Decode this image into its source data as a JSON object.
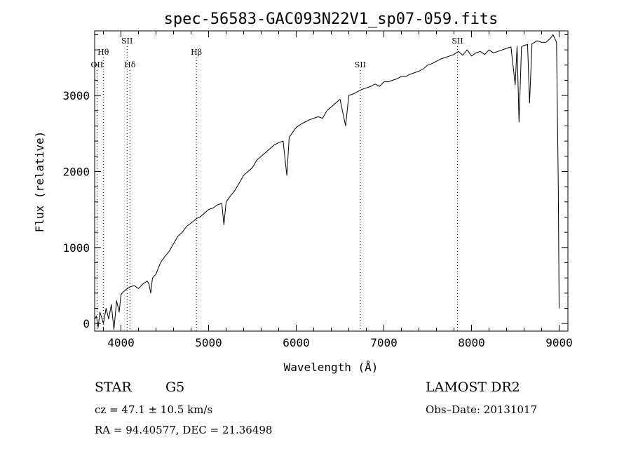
{
  "chart_data": {
    "type": "line",
    "title": "spec-56583-GAC093N22V1_sp07-059.fits",
    "xlabel": "Wavelength (Å)",
    "ylabel": "Flux (relative)",
    "xlim": [
      3700,
      9100
    ],
    "ylim": [
      -100,
      3850
    ],
    "xticks": [
      4000,
      5000,
      6000,
      7000,
      8000,
      9000
    ],
    "yticks": [
      0,
      1000,
      2000,
      3000
    ],
    "grid": false,
    "series": [
      {
        "x": [
          3700,
          3720,
          3740,
          3760,
          3780,
          3800,
          3830,
          3860,
          3890,
          3920,
          3950,
          3980,
          4000,
          4030,
          4060,
          4100,
          4150,
          4200,
          4250,
          4300,
          4320,
          4340,
          4360,
          4400,
          4450,
          4500,
          4550,
          4600,
          4650,
          4700,
          4750,
          4800,
          4861,
          4900,
          4950,
          5000,
          5050,
          5100,
          5150,
          5175,
          5200,
          5250,
          5300,
          5350,
          5400,
          5450,
          5500,
          5550,
          5600,
          5650,
          5700,
          5750,
          5800,
          5850,
          5893,
          5920,
          5950,
          6000,
          6050,
          6100,
          6150,
          6200,
          6250,
          6300,
          6350,
          6400,
          6450,
          6500,
          6563,
          6600,
          6650,
          6700,
          6750,
          6800,
          6850,
          6900,
          6950,
          7000,
          7050,
          7100,
          7150,
          7200,
          7250,
          7300,
          7350,
          7400,
          7450,
          7500,
          7550,
          7600,
          7650,
          7700,
          7750,
          7800,
          7850,
          7900,
          7950,
          8000,
          8050,
          8100,
          8150,
          8200,
          8250,
          8300,
          8350,
          8400,
          8450,
          8498,
          8520,
          8542,
          8570,
          8600,
          8640,
          8662,
          8690,
          8720,
          8750,
          8800,
          8850,
          8900,
          8930,
          8950,
          8970,
          8990,
          9000
        ],
        "y": [
          50,
          100,
          -50,
          150,
          80,
          0,
          200,
          60,
          250,
          -80,
          300,
          150,
          380,
          420,
          450,
          480,
          500,
          460,
          520,
          560,
          520,
          400,
          600,
          650,
          800,
          880,
          950,
          1050,
          1150,
          1200,
          1280,
          1320,
          1380,
          1400,
          1450,
          1500,
          1520,
          1560,
          1580,
          1300,
          1600,
          1680,
          1750,
          1850,
          1950,
          2000,
          2050,
          2150,
          2200,
          2250,
          2300,
          2350,
          2380,
          2400,
          1950,
          2450,
          2500,
          2580,
          2620,
          2650,
          2680,
          2700,
          2720,
          2700,
          2800,
          2850,
          2900,
          2950,
          2600,
          3000,
          3020,
          3050,
          3080,
          3100,
          3120,
          3150,
          3120,
          3180,
          3180,
          3200,
          3220,
          3250,
          3250,
          3280,
          3300,
          3320,
          3350,
          3400,
          3420,
          3450,
          3480,
          3500,
          3520,
          3540,
          3580,
          3530,
          3600,
          3520,
          3560,
          3580,
          3540,
          3600,
          3560,
          3580,
          3600,
          3620,
          3640,
          3140,
          3650,
          2650,
          3640,
          3660,
          3670,
          2900,
          3680,
          3700,
          3720,
          3700,
          3700,
          3750,
          3800,
          3750,
          3700,
          1800,
          200
        ]
      }
    ],
    "line_labels": [
      {
        "name": "OII",
        "x": 3727,
        "row": 3
      },
      {
        "name": "Hθ",
        "x": 3798,
        "row": 2
      },
      {
        "name": "SII",
        "x": 4070,
        "row": 1
      },
      {
        "name": "Hδ",
        "x": 4102,
        "row": 3
      },
      {
        "name": "Hβ",
        "x": 4861,
        "row": 2
      },
      {
        "name": "SII",
        "x": 6731,
        "row": 3
      },
      {
        "name": "SII",
        "x": 7840,
        "row": 1
      }
    ]
  },
  "info": {
    "object_class": "STAR",
    "subclass": "G5",
    "survey": "LAMOST DR2",
    "cz": "cz = 47.1 ± 10.5 km/s",
    "obs_date": "Obs–Date: 20131017",
    "coords": "RA =  94.40577, DEC =  21.36498"
  }
}
